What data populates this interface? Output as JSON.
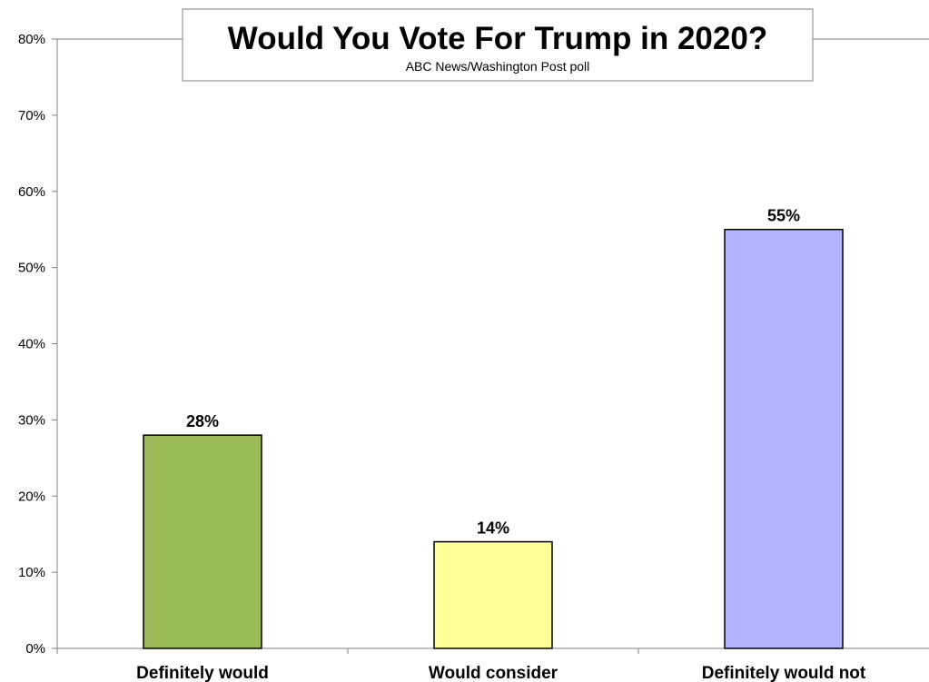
{
  "chart_data": {
    "type": "bar",
    "title": "Would You Vote For Trump in 2020?",
    "subtitle": "ABC News/Washington Post poll",
    "categories": [
      "Definitely would",
      "Would consider",
      "Definitely would not"
    ],
    "values": [
      28,
      14,
      55
    ],
    "data_labels": [
      "28%",
      "14%",
      "55%"
    ],
    "colors": [
      "#9bbb59",
      "#ffff99",
      "#b3b3ff"
    ],
    "bar_border_color": "#000000",
    "ylim": [
      0,
      80
    ],
    "yticks": [
      0,
      10,
      20,
      30,
      40,
      50,
      60,
      70,
      80
    ],
    "ytick_labels": [
      "0%",
      "10%",
      "20%",
      "30%",
      "40%",
      "50%",
      "60%",
      "70%",
      "80%"
    ],
    "xlabel": "",
    "ylabel": "",
    "grid": false,
    "legend": "none"
  }
}
